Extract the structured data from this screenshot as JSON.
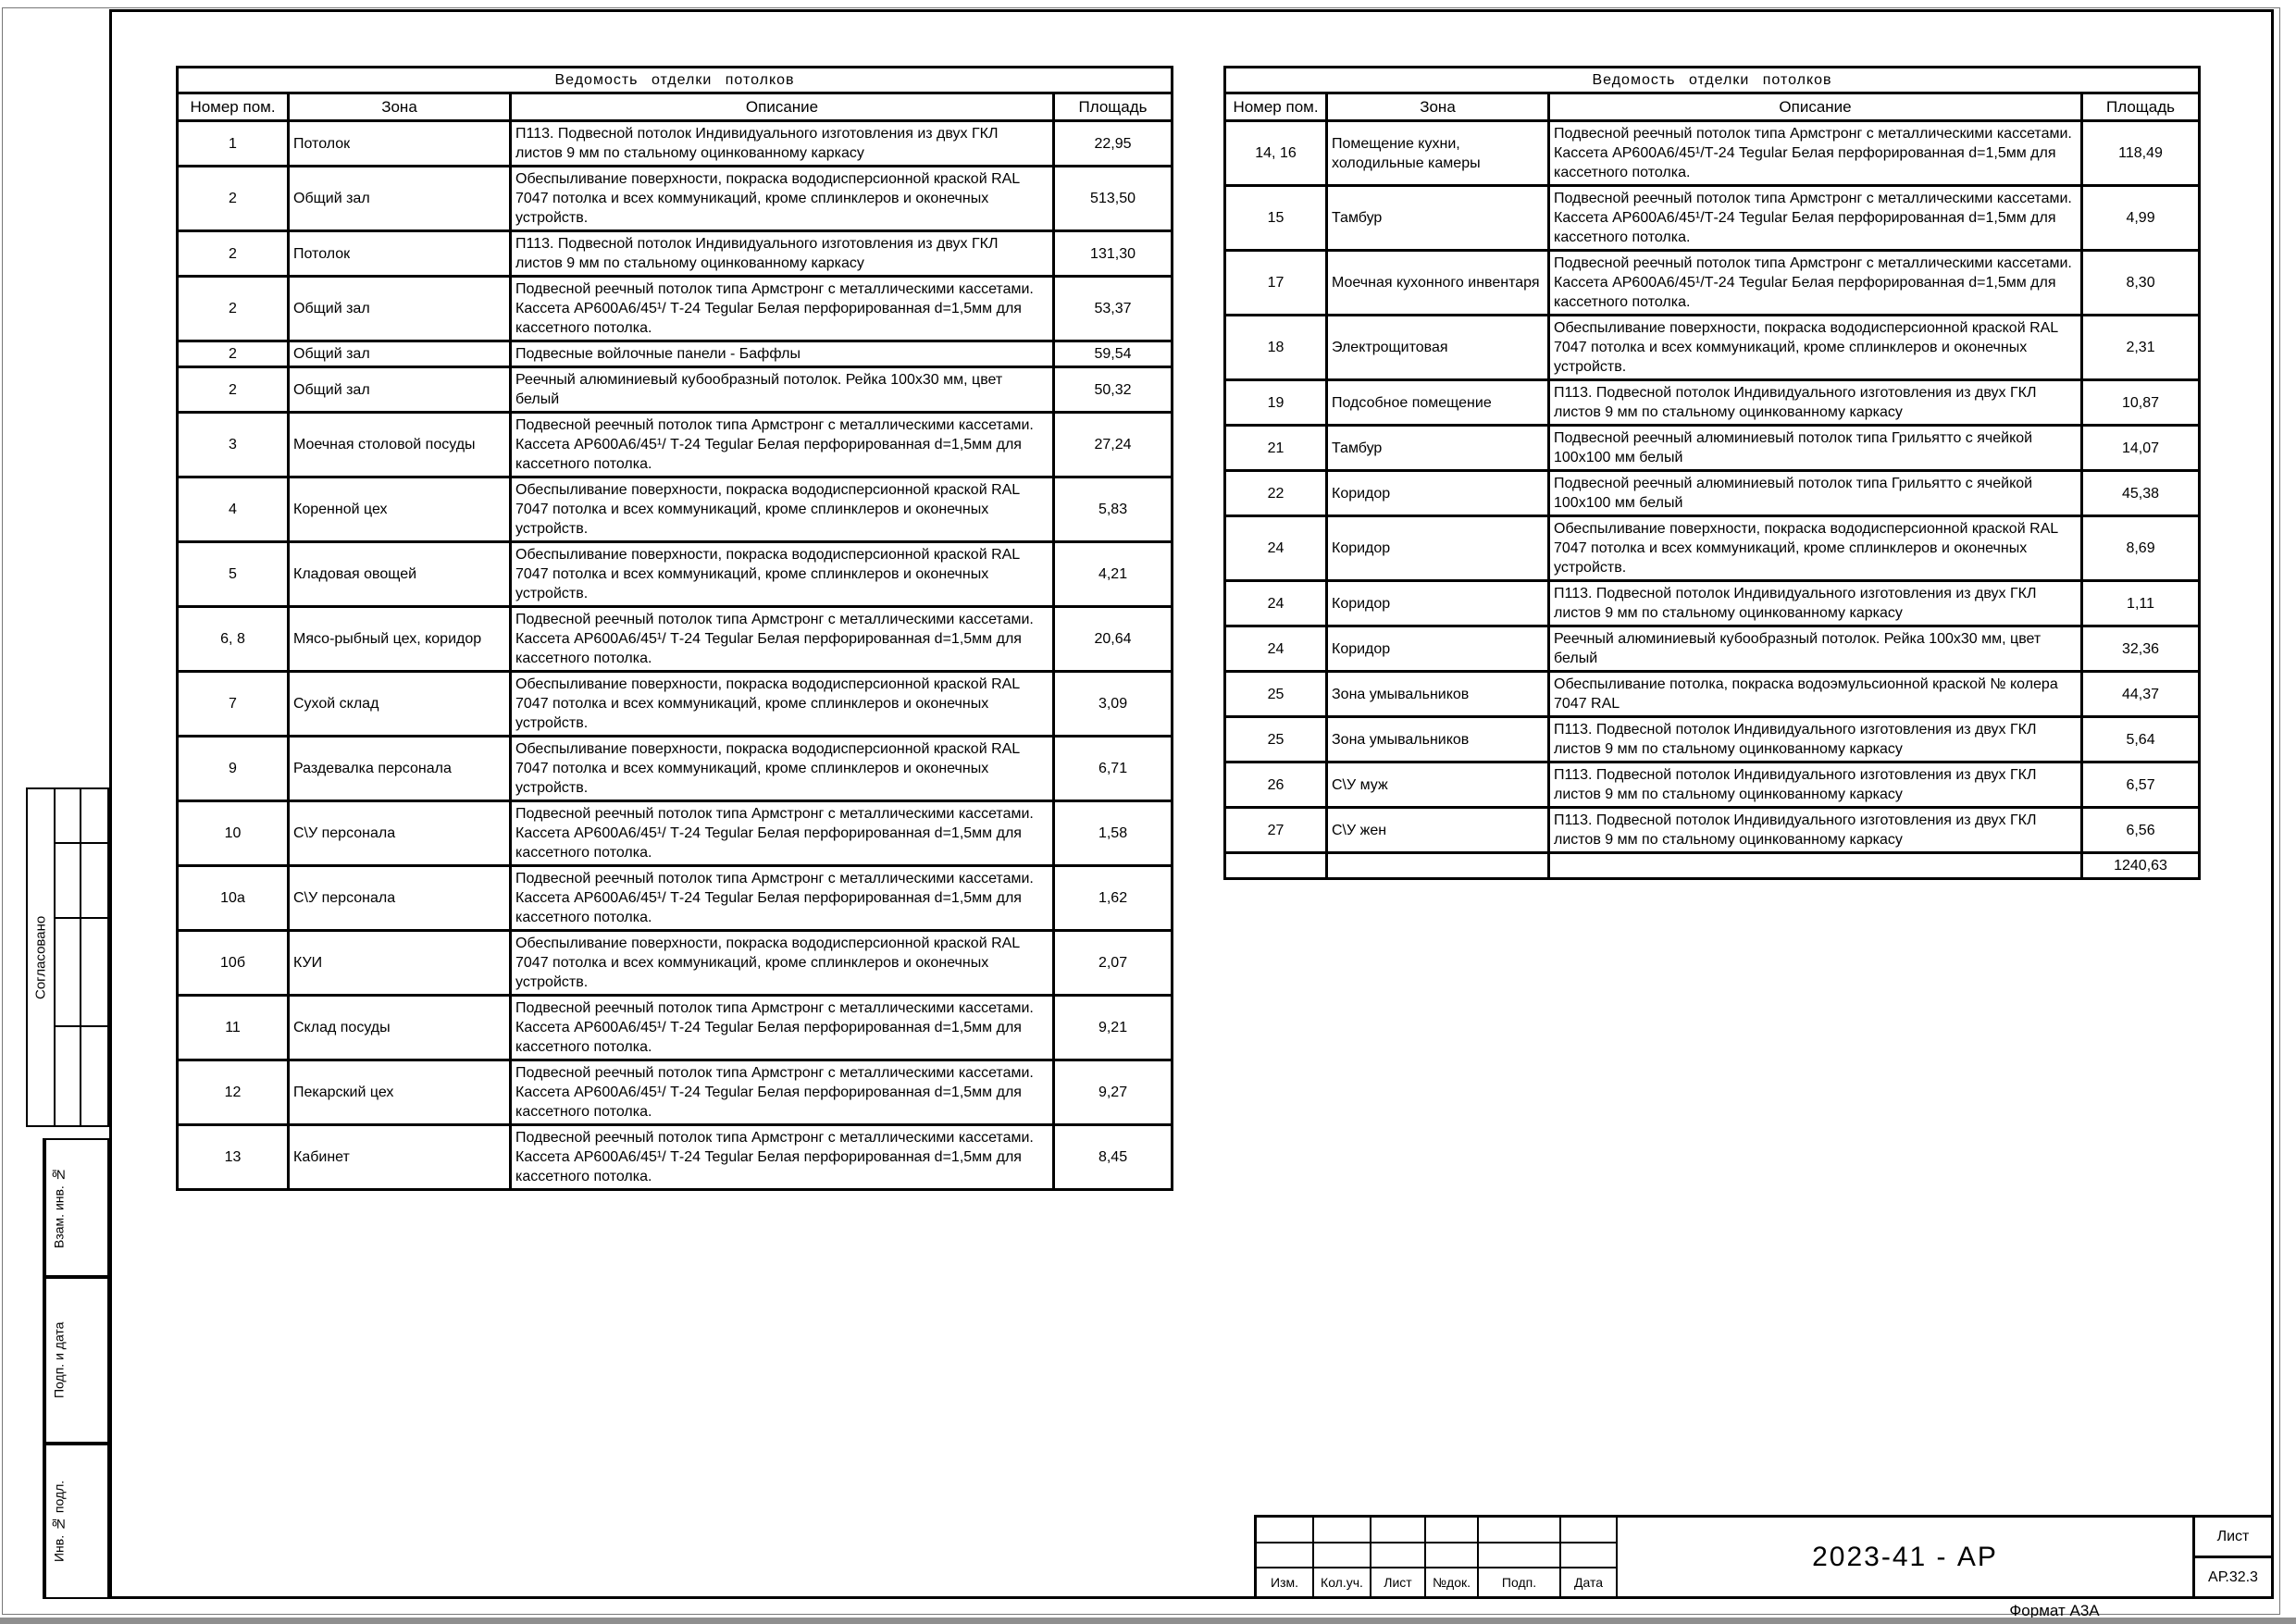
{
  "colors": {
    "line": "#000000",
    "paper": "#ffffff"
  },
  "sidebar": {
    "approved_label": "Согласовано",
    "stamps": [
      "Взам. инв. №",
      "Подп. и дата",
      "Инв. № подл."
    ]
  },
  "tables": [
    {
      "title": "Ведомость  отделки потолков",
      "columns": [
        "Номер пом.",
        "Зона",
        "Описание",
        "Площадь"
      ],
      "rows": [
        {
          "num": "1",
          "zone": "Потолок",
          "desc": "П113. Подвесной потолок Индивидуального изготовления из двух ГКЛ листов 9 мм по стальному оцинкованному каркасу",
          "area": "22,95"
        },
        {
          "num": "2",
          "zone": "Общий зал",
          "desc": "Обеспыливание поверхности, покраска вододисперсионной краской RAL 7047 потолка и всех коммуникаций, кроме сплинклеров и оконечных устройств.",
          "area": "513,50"
        },
        {
          "num": "2",
          "zone": "Потолок",
          "desc": "П113. Подвесной потолок Индивидуального изготовления из двух ГКЛ листов 9 мм по стальному оцинкованному каркасу",
          "area": "131,30"
        },
        {
          "num": "2",
          "zone": "Общий зал",
          "desc": "Подвесной реечный потолок типа Армстронг с металлическими кассетами. Кассета АР600А6/45¹/ Т-24 Tegular Белая перфорированная d=1,5мм для кассетного потолка.",
          "area": "53,37"
        },
        {
          "num": "2",
          "zone": "Общий зал",
          "desc": "Подвесные войлочные панели - Баффлы",
          "area": "59,54"
        },
        {
          "num": "2",
          "zone": "Общий зал",
          "desc": "Реечный алюминиевый кубообразный потолок. Рейка 100х30 мм, цвет белый",
          "area": "50,32"
        },
        {
          "num": "3",
          "zone": "Моечная столовой посуды",
          "desc": "Подвесной реечный потолок типа Армстронг с металлическими кассетами. Кассета АР600А6/45¹/ Т-24 Tegular Белая перфорированная d=1,5мм для кассетного потолка.",
          "area": "27,24"
        },
        {
          "num": "4",
          "zone": "Коренной цех",
          "desc": "Обеспыливание поверхности, покраска вододисперсионной краской RAL 7047 потолка и всех коммуникаций, кроме сплинклеров и оконечных устройств.",
          "area": "5,83"
        },
        {
          "num": "5",
          "zone": "Кладовая овощей",
          "desc": "Обеспыливание поверхности, покраска вододисперсионной краской RAL 7047 потолка и всех коммуникаций, кроме сплинклеров и оконечных устройств.",
          "area": "4,21"
        },
        {
          "num": "6, 8",
          "zone": "Мясо-рыбный цех, коридор",
          "desc": "Подвесной реечный потолок типа Армстронг с металлическими кассетами. Кассета АР600А6/45¹/ Т-24 Tegular Белая перфорированная d=1,5мм для кассетного потолка.",
          "area": "20,64"
        },
        {
          "num": "7",
          "zone": "Сухой склад",
          "desc": "Обеспыливание поверхности, покраска вододисперсионной краской RAL 7047 потолка и всех коммуникаций, кроме сплинклеров и оконечных устройств.",
          "area": "3,09"
        },
        {
          "num": "9",
          "zone": "Раздевалка персонала",
          "desc": "Обеспыливание поверхности, покраска вододисперсионной краской RAL 7047 потолка и всех коммуникаций, кроме сплинклеров и оконечных устройств.",
          "area": "6,71"
        },
        {
          "num": "10",
          "zone": "С\\У персонала",
          "desc": "Подвесной реечный потолок типа Армстронг с металлическими кассетами. Кассета АР600А6/45¹/ Т-24 Tegular Белая перфорированная d=1,5мм для кассетного потолка.",
          "area": "1,58"
        },
        {
          "num": "10а",
          "zone": "С\\У персонала",
          "desc": "Подвесной реечный потолок типа Армстронг с металлическими кассетами. Кассета АР600А6/45¹/ Т-24 Tegular Белая перфорированная d=1,5мм для кассетного потолка.",
          "area": "1,62"
        },
        {
          "num": "10б",
          "zone": "КУИ",
          "desc": "Обеспыливание поверхности, покраска вододисперсионной краской RAL 7047 потолка и всех коммуникаций, кроме сплинклеров и оконечных устройств.",
          "area": "2,07"
        },
        {
          "num": "11",
          "zone": "Склад посуды",
          "desc": "Подвесной реечный потолок типа Армстронг с металлическими кассетами. Кассета АР600А6/45¹/ Т-24 Tegular Белая перфорированная d=1,5мм для кассетного потолка.",
          "area": "9,21"
        },
        {
          "num": "12",
          "zone": "Пекарский цех",
          "desc": "Подвесной реечный потолок типа Армстронг с металлическими кассетами. Кассета АР600А6/45¹/ Т-24 Tegular Белая перфорированная d=1,5мм для кассетного потолка.",
          "area": "9,27"
        },
        {
          "num": "13",
          "zone": "Кабинет",
          "desc": "Подвесной реечный потолок типа Армстронг с металлическими кассетами. Кассета АР600А6/45¹/ Т-24 Tegular Белая перфорированная d=1,5мм для кассетного потолка.",
          "area": "8,45"
        }
      ]
    },
    {
      "title": "Ведомость  отделки потолков",
      "columns": [
        "Номер пом.",
        "Зона",
        "Описание",
        "Площадь"
      ],
      "rows": [
        {
          "num": "14, 16",
          "zone": "Помещение кухни, холодильные камеры",
          "desc": "Подвесной реечный потолок типа Армстронг с металлическими кассетами. Кассета АР600А6/45¹/Т-24 Tegular Белая перфорированная d=1,5мм для кассетного потолка.",
          "area": "118,49"
        },
        {
          "num": "15",
          "zone": "Тамбур",
          "desc": "Подвесной реечный потолок типа Армстронг с металлическими кассетами. Кассета АР600А6/45¹/Т-24 Tegular Белая перфорированная d=1,5мм для кассетного потолка.",
          "area": "4,99"
        },
        {
          "num": "17",
          "zone": "Моечная кухонного инвентаря",
          "desc": "Подвесной реечный потолок типа Армстронг с металлическими кассетами. Кассета АР600А6/45¹/Т-24 Tegular Белая перфорированная d=1,5мм для кассетного потолка.",
          "area": "8,30"
        },
        {
          "num": "18",
          "zone": "Электрощитовая",
          "desc": "Обеспыливание поверхности, покраска вододисперсионной краской RAL 7047 потолка и всех коммуникаций, кроме сплинклеров и оконечных устройств.",
          "area": "2,31"
        },
        {
          "num": "19",
          "zone": "Подсобное помещение",
          "desc": "П113. Подвесной потолок Индивидуального изготовления из двух ГКЛ листов 9 мм по стальному оцинкованному каркасу",
          "area": "10,87"
        },
        {
          "num": "21",
          "zone": "Тамбур",
          "desc": "Подвесной реечный алюминиевый потолок типа Грильятто с ячейкой 100х100 мм белый",
          "area": "14,07"
        },
        {
          "num": "22",
          "zone": "Коридор",
          "desc": "Подвесной реечный алюминиевый потолок типа Грильятто с ячейкой 100х100 мм белый",
          "area": "45,38"
        },
        {
          "num": "24",
          "zone": "Коридор",
          "desc": "Обеспыливание поверхности, покраска вододисперсионной краской RAL 7047 потолка и всех коммуникаций, кроме сплинклеров и оконечных устройств.",
          "area": "8,69"
        },
        {
          "num": "24",
          "zone": "Коридор",
          "desc": "П113. Подвесной потолок Индивидуального изготовления из двух ГКЛ листов 9 мм по стальному оцинкованному каркасу",
          "area": "1,11"
        },
        {
          "num": "24",
          "zone": "Коридор",
          "desc": "Реечный алюминиевый кубообразный потолок. Рейка 100х30 мм, цвет белый",
          "area": "32,36"
        },
        {
          "num": "25",
          "zone": "Зона умывальников",
          "desc": "Обеспыливание потолка, покраска водоэмульсионной краской № колера 7047 RAL",
          "area": "44,37"
        },
        {
          "num": "25",
          "zone": "Зона умывальников",
          "desc": "П113. Подвесной потолок Индивидуального изготовления из двух ГКЛ листов 9 мм по стальному оцинкованному каркасу",
          "area": "5,64"
        },
        {
          "num": "26",
          "zone": "С\\У муж",
          "desc": "П113. Подвесной потолок Индивидуального изготовления из двух ГКЛ листов 9 мм по стальному оцинкованному каркасу",
          "area": "6,57"
        },
        {
          "num": "27",
          "zone": "С\\У жен",
          "desc": "П113. Подвесной потолок Индивидуального изготовления из двух ГКЛ листов 9 мм по стальному оцинкованному каркасу",
          "area": "6,56"
        },
        {
          "num": "",
          "zone": "",
          "desc": "",
          "area": "1240,63"
        }
      ]
    }
  ],
  "titleblock": {
    "doc_number": "2023-41 - АР",
    "sheet_label": "Лист",
    "sheet_code": "АР.32.3",
    "footer_labels": [
      "Изм.",
      "Кол.уч.",
      "Лист",
      "№док.",
      "Подп.",
      "Дата"
    ],
    "format_label": "Формат А3А"
  }
}
